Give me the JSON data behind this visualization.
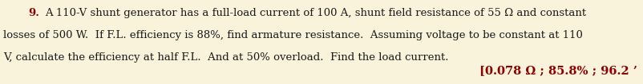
{
  "background_color": "#faf3dc",
  "number": "9.",
  "number_color": "#8B0000",
  "number_fontsize": 9.5,
  "main_text_line1": "A 110-V shunt generator has a full-load current of 100 A, shunt field resistance of 55 Ω and constant",
  "main_text_line2": "losses of 500 W.  If F.L. efficiency is 88%, find armature resistance.  Assuming voltage to be constant at 110",
  "main_text_line3": "V, calculate the efficiency at half F.L.  And at 50% overload.  Find the load current.",
  "answer_text": "[0.078 Ω ; 85.8% ; 96.2 ’",
  "answer_color": "#8B0000",
  "text_color": "#1a1a1a",
  "text_fontsize": 9.5,
  "answer_fontsize": 10.5,
  "fig_width": 8.02,
  "fig_height": 1.06,
  "dpi": 100
}
